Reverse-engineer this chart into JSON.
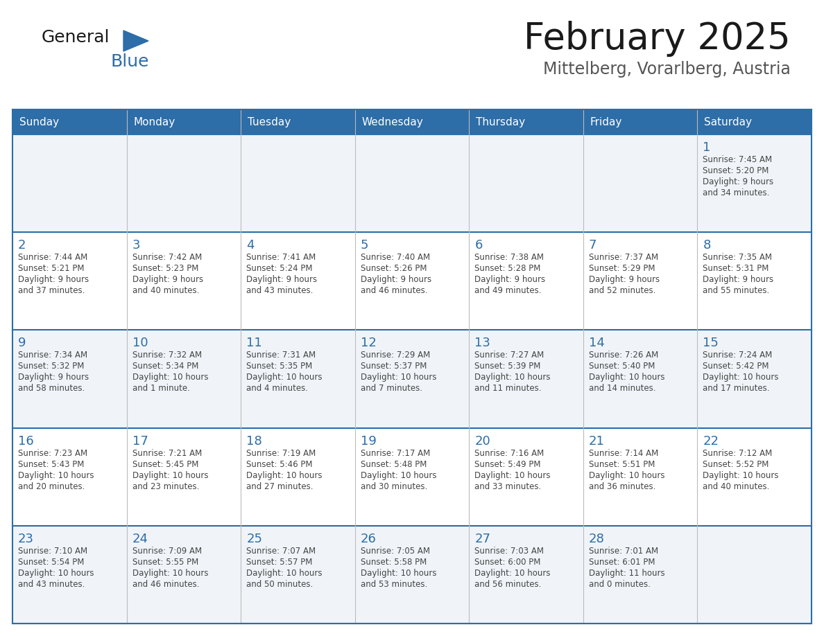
{
  "title": "February 2025",
  "subtitle": "Mittelberg, Vorarlberg, Austria",
  "header_bg": "#2D6DA8",
  "header_text": "#FFFFFF",
  "row_bg_light": "#F0F4F8",
  "row_bg_white": "#FFFFFF",
  "border_color": "#2D6DA8",
  "cell_border_color": "#AAAAAA",
  "day_number_color": "#2D6DA8",
  "text_color": "#444444",
  "days_of_week": [
    "Sunday",
    "Monday",
    "Tuesday",
    "Wednesday",
    "Thursday",
    "Friday",
    "Saturday"
  ],
  "calendar_data": [
    [
      {
        "day": "",
        "sunrise": "",
        "sunset": "",
        "daylight": ""
      },
      {
        "day": "",
        "sunrise": "",
        "sunset": "",
        "daylight": ""
      },
      {
        "day": "",
        "sunrise": "",
        "sunset": "",
        "daylight": ""
      },
      {
        "day": "",
        "sunrise": "",
        "sunset": "",
        "daylight": ""
      },
      {
        "day": "",
        "sunrise": "",
        "sunset": "",
        "daylight": ""
      },
      {
        "day": "",
        "sunrise": "",
        "sunset": "",
        "daylight": ""
      },
      {
        "day": "1",
        "sunrise": "7:45 AM",
        "sunset": "5:20 PM",
        "daylight": "9 hours\nand 34 minutes."
      }
    ],
    [
      {
        "day": "2",
        "sunrise": "7:44 AM",
        "sunset": "5:21 PM",
        "daylight": "9 hours\nand 37 minutes."
      },
      {
        "day": "3",
        "sunrise": "7:42 AM",
        "sunset": "5:23 PM",
        "daylight": "9 hours\nand 40 minutes."
      },
      {
        "day": "4",
        "sunrise": "7:41 AM",
        "sunset": "5:24 PM",
        "daylight": "9 hours\nand 43 minutes."
      },
      {
        "day": "5",
        "sunrise": "7:40 AM",
        "sunset": "5:26 PM",
        "daylight": "9 hours\nand 46 minutes."
      },
      {
        "day": "6",
        "sunrise": "7:38 AM",
        "sunset": "5:28 PM",
        "daylight": "9 hours\nand 49 minutes."
      },
      {
        "day": "7",
        "sunrise": "7:37 AM",
        "sunset": "5:29 PM",
        "daylight": "9 hours\nand 52 minutes."
      },
      {
        "day": "8",
        "sunrise": "7:35 AM",
        "sunset": "5:31 PM",
        "daylight": "9 hours\nand 55 minutes."
      }
    ],
    [
      {
        "day": "9",
        "sunrise": "7:34 AM",
        "sunset": "5:32 PM",
        "daylight": "9 hours\nand 58 minutes."
      },
      {
        "day": "10",
        "sunrise": "7:32 AM",
        "sunset": "5:34 PM",
        "daylight": "10 hours\nand 1 minute."
      },
      {
        "day": "11",
        "sunrise": "7:31 AM",
        "sunset": "5:35 PM",
        "daylight": "10 hours\nand 4 minutes."
      },
      {
        "day": "12",
        "sunrise": "7:29 AM",
        "sunset": "5:37 PM",
        "daylight": "10 hours\nand 7 minutes."
      },
      {
        "day": "13",
        "sunrise": "7:27 AM",
        "sunset": "5:39 PM",
        "daylight": "10 hours\nand 11 minutes."
      },
      {
        "day": "14",
        "sunrise": "7:26 AM",
        "sunset": "5:40 PM",
        "daylight": "10 hours\nand 14 minutes."
      },
      {
        "day": "15",
        "sunrise": "7:24 AM",
        "sunset": "5:42 PM",
        "daylight": "10 hours\nand 17 minutes."
      }
    ],
    [
      {
        "day": "16",
        "sunrise": "7:23 AM",
        "sunset": "5:43 PM",
        "daylight": "10 hours\nand 20 minutes."
      },
      {
        "day": "17",
        "sunrise": "7:21 AM",
        "sunset": "5:45 PM",
        "daylight": "10 hours\nand 23 minutes."
      },
      {
        "day": "18",
        "sunrise": "7:19 AM",
        "sunset": "5:46 PM",
        "daylight": "10 hours\nand 27 minutes."
      },
      {
        "day": "19",
        "sunrise": "7:17 AM",
        "sunset": "5:48 PM",
        "daylight": "10 hours\nand 30 minutes."
      },
      {
        "day": "20",
        "sunrise": "7:16 AM",
        "sunset": "5:49 PM",
        "daylight": "10 hours\nand 33 minutes."
      },
      {
        "day": "21",
        "sunrise": "7:14 AM",
        "sunset": "5:51 PM",
        "daylight": "10 hours\nand 36 minutes."
      },
      {
        "day": "22",
        "sunrise": "7:12 AM",
        "sunset": "5:52 PM",
        "daylight": "10 hours\nand 40 minutes."
      }
    ],
    [
      {
        "day": "23",
        "sunrise": "7:10 AM",
        "sunset": "5:54 PM",
        "daylight": "10 hours\nand 43 minutes."
      },
      {
        "day": "24",
        "sunrise": "7:09 AM",
        "sunset": "5:55 PM",
        "daylight": "10 hours\nand 46 minutes."
      },
      {
        "day": "25",
        "sunrise": "7:07 AM",
        "sunset": "5:57 PM",
        "daylight": "10 hours\nand 50 minutes."
      },
      {
        "day": "26",
        "sunrise": "7:05 AM",
        "sunset": "5:58 PM",
        "daylight": "10 hours\nand 53 minutes."
      },
      {
        "day": "27",
        "sunrise": "7:03 AM",
        "sunset": "6:00 PM",
        "daylight": "10 hours\nand 56 minutes."
      },
      {
        "day": "28",
        "sunrise": "7:01 AM",
        "sunset": "6:01 PM",
        "daylight": "11 hours\nand 0 minutes."
      },
      {
        "day": "",
        "sunrise": "",
        "sunset": "",
        "daylight": ""
      }
    ]
  ],
  "logo_color_general": "#1A1A1A",
  "logo_color_blue": "#2D6DA8",
  "title_color": "#1A1A1A",
  "subtitle_color": "#555555"
}
